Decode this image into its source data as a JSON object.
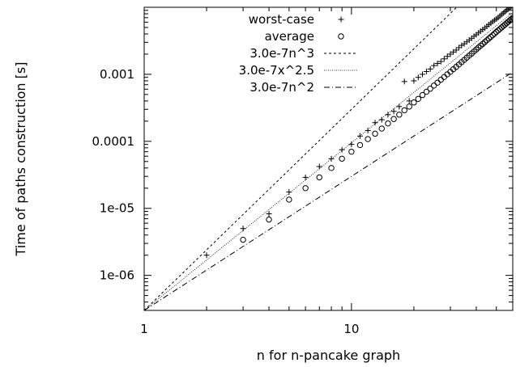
{
  "chart_data": {
    "type": "scatter",
    "title": "",
    "xlabel": "n for n-pancake graph",
    "ylabel": "Time of paths construction [s]",
    "xscale": "log",
    "yscale": "log",
    "xlim": [
      1,
      60
    ],
    "ylim": [
      3e-07,
      0.01
    ],
    "x_ticks": [
      {
        "value": 1,
        "label": "1"
      },
      {
        "value": 10,
        "label": "10"
      }
    ],
    "y_ticks": [
      {
        "value": 1e-06,
        "label": "1e-06"
      },
      {
        "value": 1e-05,
        "label": "1e-05"
      },
      {
        "value": 0.0001,
        "label": "0.0001"
      },
      {
        "value": 0.001,
        "label": "0.001"
      }
    ],
    "grid": false,
    "legend_position": "top-left",
    "series": [
      {
        "name": "worst-case",
        "marker": "plus",
        "x": [
          2,
          3,
          4,
          5,
          6,
          7,
          8,
          9,
          10,
          11,
          12,
          13,
          14,
          15,
          16,
          17,
          18,
          19,
          20,
          21,
          22,
          23,
          24,
          25,
          26,
          27,
          28,
          29,
          30,
          31,
          32,
          33,
          34,
          35,
          36,
          37,
          38,
          39,
          40,
          41,
          42,
          43,
          44,
          45,
          46,
          47,
          48,
          49,
          50,
          51,
          52,
          53,
          54,
          55,
          56,
          57,
          58,
          59,
          60
        ],
        "y": [
          2e-06,
          5e-06,
          8.3e-06,
          1.75e-05,
          2.9e-05,
          4.2e-05,
          5.5e-05,
          7.5e-05,
          9e-05,
          0.00012,
          0.000145,
          0.00019,
          0.00021,
          0.00025,
          0.00028,
          0.00033,
          0.00078,
          0.0004,
          0.0008,
          0.0009,
          0.001,
          0.0011,
          0.0012,
          0.00135,
          0.00145,
          0.00155,
          0.0017,
          0.00185,
          0.002,
          0.00215,
          0.0023,
          0.0025,
          0.0027,
          0.00285,
          0.00305,
          0.00325,
          0.00345,
          0.0037,
          0.0039,
          0.00415,
          0.0044,
          0.00465,
          0.0049,
          0.0052,
          0.0055,
          0.0058,
          0.0061,
          0.0064,
          0.0067,
          0.007,
          0.0074,
          0.0078,
          0.0082,
          0.0086,
          0.009,
          0.0094,
          0.0098,
          0.0103,
          0.0108
        ]
      },
      {
        "name": "average",
        "marker": "circle",
        "x": [
          3,
          4,
          5,
          6,
          7,
          8,
          9,
          10,
          11,
          12,
          13,
          14,
          15,
          16,
          17,
          18,
          19,
          20,
          21,
          22,
          23,
          24,
          25,
          26,
          27,
          28,
          29,
          30,
          31,
          32,
          33,
          34,
          35,
          36,
          37,
          38,
          39,
          40,
          41,
          42,
          43,
          44,
          45,
          46,
          47,
          48,
          49,
          50,
          51,
          52,
          53,
          54,
          55,
          56,
          57,
          58,
          59,
          60
        ],
        "y": [
          3.4e-06,
          6.8e-06,
          1.35e-05,
          2e-05,
          2.9e-05,
          4e-05,
          5.5e-05,
          7e-05,
          8.8e-05,
          0.000108,
          0.00013,
          0.000155,
          0.000185,
          0.000215,
          0.00025,
          0.00029,
          0.00033,
          0.00038,
          0.00043,
          0.00049,
          0.00055,
          0.00061,
          0.00068,
          0.00075,
          0.00083,
          0.00091,
          0.001,
          0.00109,
          0.00119,
          0.00129,
          0.0014,
          0.00152,
          0.00164,
          0.00177,
          0.0019,
          0.00204,
          0.00219,
          0.00235,
          0.00251,
          0.00268,
          0.00285,
          0.00303,
          0.00322,
          0.00342,
          0.00362,
          0.00383,
          0.00405,
          0.00428,
          0.00451,
          0.00475,
          0.005,
          0.00525,
          0.0055,
          0.00578,
          0.00606,
          0.00635,
          0.00664,
          0.00694
        ]
      },
      {
        "name": "3.0e-7n^3",
        "type": "line",
        "style": "dashed",
        "coef": 3e-07,
        "exponent": 3
      },
      {
        "name": "3.0e-7x^2.5",
        "type": "line",
        "style": "dotted",
        "coef": 3e-07,
        "exponent": 2.5
      },
      {
        "name": "3.0e-7n^2",
        "type": "line",
        "style": "dashdot",
        "coef": 3e-07,
        "exponent": 2
      }
    ]
  }
}
